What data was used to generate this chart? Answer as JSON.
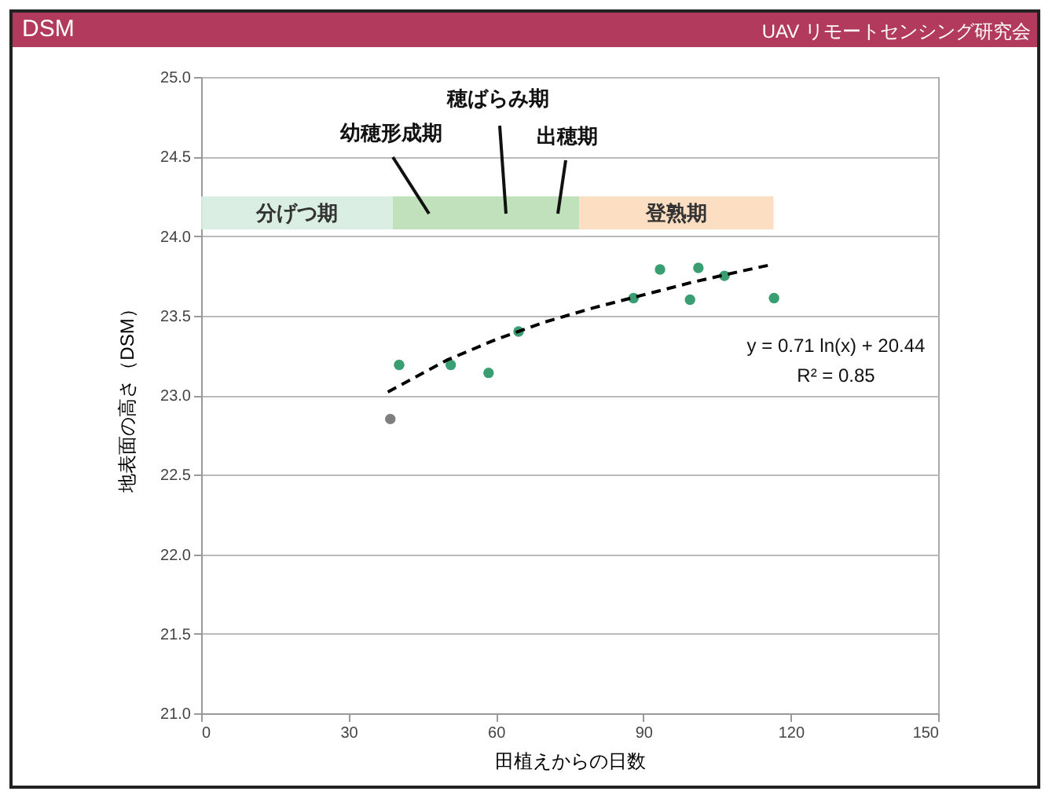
{
  "chart_data": {
    "type": "scatter",
    "title": "DSM",
    "subtitle": "UAV リモートセンシング研究会",
    "xlabel": "田植えからの日数",
    "ylabel": "地表面の高さ（DSM）",
    "xlim": [
      0,
      150
    ],
    "xticks": [
      0,
      30,
      60,
      90,
      120,
      150
    ],
    "ylim": [
      21,
      25
    ],
    "yticks": [
      {
        "value": 21,
        "label": "21.0"
      },
      {
        "value": 21.5,
        "label": "21.5"
      },
      {
        "value": 22,
        "label": "22.0"
      },
      {
        "value": 22.5,
        "label": "22.5"
      },
      {
        "value": 23,
        "label": "23.0"
      },
      {
        "value": 23.5,
        "label": "23.5"
      },
      {
        "value": 24,
        "label": "24.0"
      },
      {
        "value": 24.5,
        "label": "24.5"
      },
      {
        "value": 25,
        "label": "25.0"
      }
    ],
    "grid": "y",
    "series": [
      {
        "marker": "circle",
        "x": [
          38.5,
          40.3,
          50.8,
          58.5,
          64.6,
          88.0,
          93.4,
          99.5,
          101.2,
          106.5,
          116.6
        ],
        "values": [
          22.85,
          23.19,
          23.19,
          23.14,
          23.4,
          23.61,
          23.79,
          23.6,
          23.8,
          23.75,
          23.61
        ],
        "colors": [
          "#7f7f7f",
          "#3a9e73",
          "#3a9e73",
          "#3a9e73",
          "#3a9e73",
          "#3a9e73",
          "#3a9e73",
          "#3a9e73",
          "#3a9e73",
          "#3a9e73",
          "#3a9e73"
        ]
      },
      {
        "type": "line",
        "marker": "none",
        "line_style": "dashed",
        "color": "#000000",
        "x": [
          38,
          50,
          60,
          70,
          80,
          90,
          100,
          110,
          116
        ],
        "values": [
          23.02,
          23.22,
          23.35,
          23.46,
          23.55,
          23.63,
          23.71,
          23.78,
          23.82
        ]
      }
    ],
    "bands": [
      {
        "axis": "x",
        "from": 0,
        "to": 39,
        "label": "分げつ期",
        "color": "#d6ece0"
      },
      {
        "axis": "x",
        "from": 39,
        "to": 77,
        "color": "#b9deb4"
      },
      {
        "axis": "x",
        "from": 77,
        "to": 116.5,
        "label": "登熟期",
        "color": "#fcdcbc"
      }
    ],
    "annotations": [
      "幼穂形成期",
      "穂ばらみ期",
      "出穂期",
      "y = 0.71 ln(x) + 20.44",
      "R² = 0.85"
    ]
  }
}
